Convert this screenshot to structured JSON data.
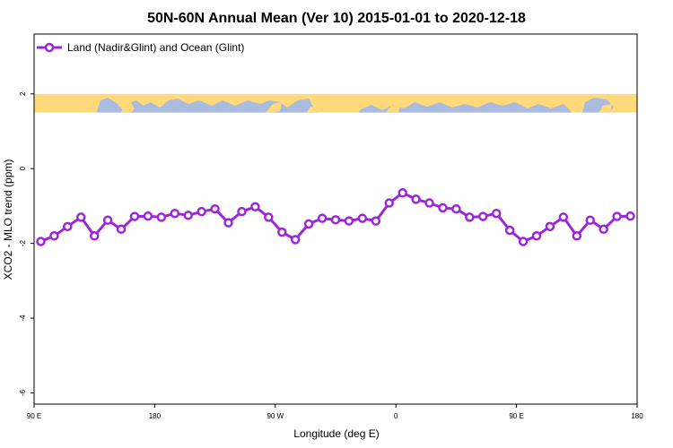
{
  "chart_data": {
    "type": "line",
    "title": "50N-60N Annual Mean (Ver 10)   2015-01-01 to 2020-12-18",
    "xlabel": "Longitude (deg E)",
    "ylabel": "XCO2 - MLO trend (ppm)",
    "xlim": [
      90,
      540
    ],
    "ylim": [
      -6.3,
      3.6
    ],
    "x_ticks": [
      {
        "value": 90,
        "label": "90 E"
      },
      {
        "value": 180,
        "label": "180"
      },
      {
        "value": 270,
        "label": "90 W"
      },
      {
        "value": 360,
        "label": "0"
      },
      {
        "value": 450,
        "label": "90 E"
      },
      {
        "value": 540,
        "label": "180"
      }
    ],
    "y_ticks": [
      {
        "value": 2,
        "label": "2"
      },
      {
        "value": 0,
        "label": "0"
      },
      {
        "value": -2,
        "label": "-2"
      },
      {
        "value": -4,
        "label": "-4"
      },
      {
        "value": -6,
        "label": "-6"
      }
    ],
    "legend": {
      "position": "top-left"
    },
    "map_strip": {
      "y_range": [
        1.5,
        2.0
      ],
      "land_color": "#FFD97A",
      "ocean_color": "#A9BCE0"
    },
    "series": [
      {
        "name": "Land (Nadir&Glint) and Ocean (Glint)",
        "color": "#9B27D8",
        "x": [
          95,
          105,
          115,
          125,
          135,
          145,
          155,
          165,
          175,
          185,
          195,
          205,
          215,
          225,
          235,
          245,
          255,
          265,
          275,
          285,
          295,
          305,
          315,
          325,
          335,
          345,
          355,
          365,
          375,
          385,
          395,
          405,
          415,
          425,
          435,
          445,
          455,
          465,
          475,
          485,
          495,
          505,
          515,
          525,
          535
        ],
        "y": [
          -1.95,
          -1.8,
          -1.55,
          -1.3,
          -1.8,
          -1.38,
          -1.62,
          -1.28,
          -1.27,
          -1.3,
          -1.2,
          -1.25,
          -1.15,
          -1.08,
          -1.45,
          -1.15,
          -1.02,
          -1.3,
          -1.7,
          -1.9,
          -1.48,
          -1.33,
          -1.37,
          -1.4,
          -1.33,
          -1.4,
          -0.92,
          -0.65,
          -0.82,
          -0.92,
          -1.05,
          -1.08,
          -1.3,
          -1.28,
          -1.2,
          -1.65,
          -1.95,
          -1.8,
          -1.55,
          -1.3,
          -1.8,
          -1.38,
          -1.62,
          -1.28,
          -1.27
        ]
      }
    ]
  }
}
